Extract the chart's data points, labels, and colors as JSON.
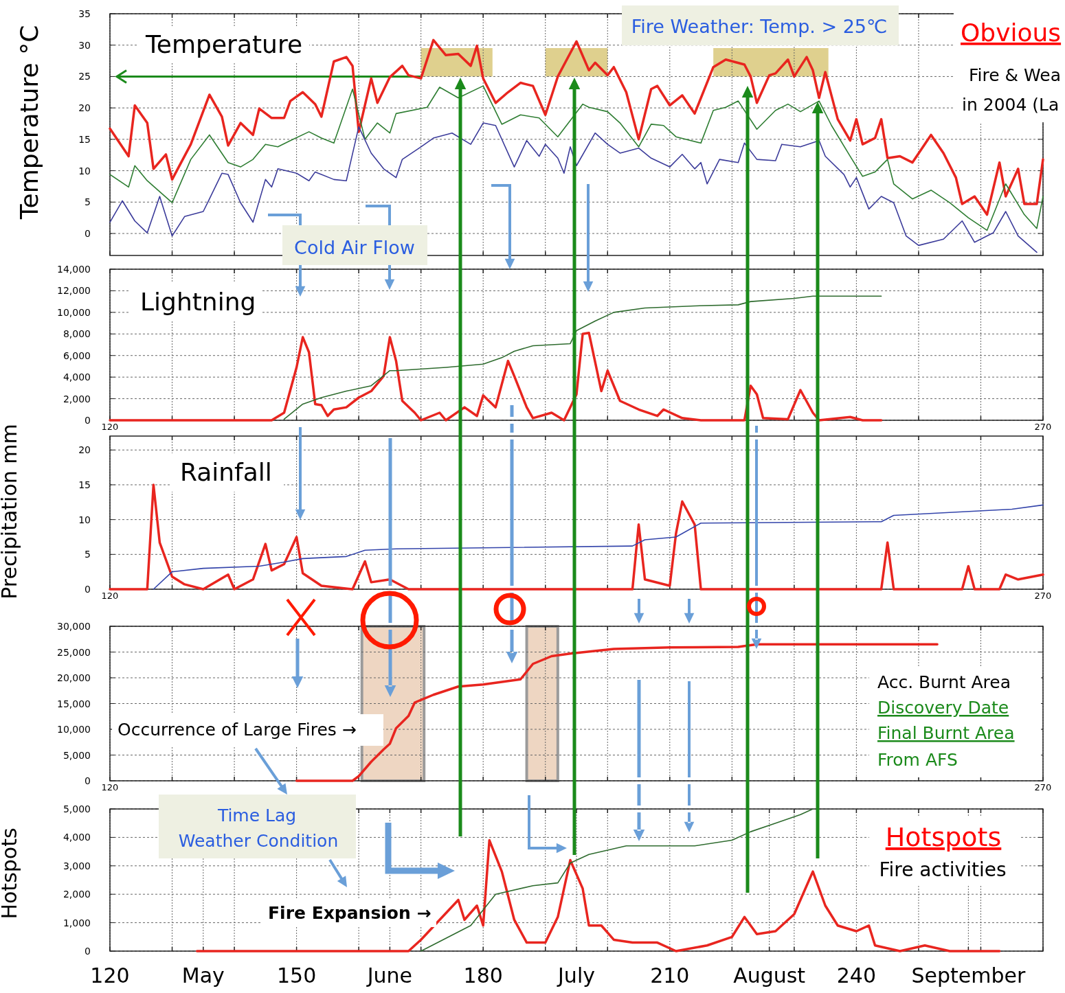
{
  "chart_data": [
    {
      "type": "line",
      "xlim": [
        120,
        270
      ],
      "ylim": [
        -3.5,
        35
      ],
      "ylabel": "Temperature °C",
      "grid": true,
      "tick_labels": "y",
      "xticks": [
        {
          "value": 120,
          "label": null
        },
        {
          "value": 130,
          "label": null
        },
        {
          "value": 140,
          "label": null
        },
        {
          "value": 150,
          "label": null
        },
        {
          "value": 160,
          "label": null
        },
        {
          "value": 170,
          "label": null
        },
        {
          "value": 180,
          "label": null
        },
        {
          "value": 190,
          "label": null
        },
        {
          "value": 200,
          "label": null
        },
        {
          "value": 210,
          "label": null
        },
        {
          "value": 220,
          "label": null
        },
        {
          "value": 230,
          "label": null
        },
        {
          "value": 240,
          "label": null
        },
        {
          "value": 250,
          "label": null
        },
        {
          "value": 260,
          "label": null
        },
        {
          "value": 270,
          "label": null
        }
      ],
      "yticks": [
        0,
        5,
        10,
        15,
        20,
        25,
        30,
        35
      ],
      "ref_lines": [
        {
          "axis": "y",
          "value": 25,
          "color": "#1b8a1b"
        }
      ],
      "bands": [
        {
          "axis": "x",
          "from": 170,
          "to": 181.5,
          "color": "#d9c87a"
        },
        {
          "axis": "x",
          "from": 190,
          "to": 200,
          "color": "#d9c87a"
        },
        {
          "axis": "x",
          "from": 217,
          "to": 235.5,
          "color": "#d9c87a"
        }
      ],
      "annotations": [
        "Temperature",
        "Fire Weather: Temp. > 25℃",
        "Cold Air Flow",
        "Obvious",
        "Fire & Wea",
        "in 2004 (La"
      ],
      "series": [
        {
          "color": "#e8251f",
          "x": [
            120,
            123,
            124,
            126,
            127,
            129,
            130,
            133,
            136,
            138,
            139,
            141,
            143,
            144,
            146,
            148,
            149,
            151,
            153,
            154,
            156,
            158,
            159,
            160,
            162,
            163,
            165,
            167,
            168,
            170,
            172,
            174,
            176,
            178,
            179,
            180,
            182,
            184,
            186,
            188,
            190,
            192,
            195,
            197,
            198,
            200,
            201,
            203,
            205,
            207,
            208,
            210,
            212,
            214,
            217,
            219,
            222,
            223,
            224,
            226,
            227,
            229,
            230,
            232,
            233,
            234,
            235,
            237,
            239,
            240,
            241,
            243,
            244,
            245,
            247,
            249,
            252,
            254,
            256,
            257,
            259,
            261,
            263,
            264,
            266,
            267,
            269,
            270
          ],
          "values": [
            16.7,
            12.3,
            20.4,
            17.6,
            10.3,
            12.6,
            8.6,
            14.2,
            22.1,
            18.6,
            14,
            17.6,
            15.7,
            19.9,
            18.4,
            18.4,
            21.1,
            22.5,
            20.6,
            18.6,
            27.4,
            28.1,
            26.7,
            16.2,
            24.7,
            20.8,
            24.9,
            26.7,
            25.2,
            24.7,
            30.8,
            28.4,
            28.6,
            26.7,
            29.9,
            24.7,
            20.8,
            22.5,
            24,
            23.5,
            18.9,
            25,
            30.6,
            26,
            27.2,
            25.2,
            26.5,
            22.5,
            15,
            23,
            23.5,
            20.4,
            22,
            19.1,
            26.5,
            27.7,
            26.9,
            25,
            20.8,
            25.2,
            25.5,
            27.7,
            25,
            28.1,
            26,
            21.6,
            25.7,
            18.2,
            14.8,
            18.2,
            14.2,
            15.2,
            18.2,
            12,
            12.3,
            11.3,
            15.7,
            12.8,
            8.9,
            4.7,
            5.9,
            3,
            11.3,
            5.9,
            10.3,
            4.7,
            4.7,
            11.8
          ]
        },
        {
          "color": "#2e7d32",
          "x": [
            120,
            123,
            124,
            126,
            130,
            133,
            136,
            139,
            141,
            143,
            145,
            147,
            149,
            152,
            154,
            156,
            159,
            161,
            163,
            165,
            166,
            171,
            173,
            176,
            180,
            183,
            186,
            189,
            192,
            196,
            197,
            200,
            202,
            205,
            207,
            209,
            211,
            215,
            217,
            219,
            221,
            224,
            227,
            229,
            231,
            234,
            236,
            239,
            241,
            243,
            245,
            246,
            249,
            252,
            255,
            258,
            261,
            264,
            267,
            269,
            270
          ],
          "values": [
            9.4,
            7.4,
            10.8,
            8.4,
            4.9,
            11.8,
            15.7,
            11.3,
            10.6,
            11.8,
            14.2,
            13.8,
            14.8,
            16.2,
            15.2,
            14.4,
            23,
            15,
            17.6,
            16,
            19.1,
            20.1,
            23.3,
            21.6,
            23.5,
            17.4,
            18.9,
            18.4,
            15.4,
            20.6,
            20.1,
            19.4,
            17.6,
            13.8,
            17.4,
            17.2,
            15.4,
            14.4,
            19.6,
            20.1,
            21.1,
            16.6,
            19.6,
            20.6,
            19.4,
            21.1,
            17.2,
            12.3,
            9.1,
            9.8,
            11.8,
            7.9,
            5.5,
            6.9,
            4.9,
            2.5,
            0.5,
            7.9,
            3,
            0.8,
            5.9
          ]
        },
        {
          "color": "#3b3b9a",
          "x": [
            120,
            122,
            124,
            126,
            128,
            130,
            132,
            135,
            136,
            138,
            139,
            141,
            143,
            145,
            146,
            147,
            150,
            152,
            153,
            156,
            158,
            160,
            162,
            164,
            166,
            167,
            170,
            172,
            175,
            178,
            180,
            182,
            185,
            187,
            189,
            190,
            192,
            193,
            194,
            195,
            198,
            200,
            202,
            205,
            207,
            210,
            212,
            214,
            215,
            216,
            218,
            221,
            222,
            224,
            227,
            228,
            231,
            234,
            235,
            238,
            239,
            240,
            242,
            244,
            246,
            248,
            250,
            254,
            257,
            259,
            262,
            264,
            266,
            269
          ],
          "values": [
            1.8,
            5.2,
            2,
            0.1,
            5.9,
            -0.4,
            2.7,
            3.5,
            5.5,
            9.6,
            9.4,
            4.9,
            1.8,
            8.6,
            7.4,
            10.3,
            9.6,
            8.4,
            9.8,
            8.6,
            8.4,
            17,
            12.8,
            10.3,
            8.9,
            11.8,
            13.8,
            15.2,
            16,
            14.2,
            17.6,
            17.2,
            10.6,
            14.8,
            12.3,
            14.2,
            12,
            9.6,
            13.8,
            10.8,
            16,
            14.2,
            12.8,
            13.6,
            12,
            10.6,
            12.6,
            10.3,
            11.3,
            7.9,
            11.8,
            11.3,
            14.4,
            11.8,
            11.6,
            14.2,
            13.8,
            14.8,
            12.3,
            9.4,
            7.4,
            8.9,
            3.9,
            5.9,
            4.9,
            -0.4,
            -1.9,
            -0.9,
            2,
            -1.4,
            0.1,
            3.5,
            -0.4,
            -3
          ]
        }
      ]
    },
    {
      "type": "line",
      "xlim": [
        120,
        270
      ],
      "ylim": [
        0,
        14000
      ],
      "grid": true,
      "xticks": [
        120,
        {
          "value": 130,
          "label": null
        },
        {
          "value": 140,
          "label": null
        },
        {
          "value": 150,
          "label": null
        },
        {
          "value": 160,
          "label": null
        },
        {
          "value": 170,
          "label": null
        },
        {
          "value": 180,
          "label": null
        },
        {
          "value": 190,
          "label": null
        },
        {
          "value": 200,
          "label": null
        },
        {
          "value": 210,
          "label": null
        },
        {
          "value": 220,
          "label": null
        },
        {
          "value": 230,
          "label": null
        },
        {
          "value": 240,
          "label": null
        },
        {
          "value": 250,
          "label": null
        },
        {
          "value": 260,
          "label": null
        },
        270
      ],
      "yticks": [
        0,
        {
          "value": 2000,
          "label": "2,000"
        },
        {
          "value": 4000,
          "label": "4,000"
        },
        {
          "value": 6000,
          "label": "6,000"
        },
        {
          "value": 8000,
          "label": "8,000"
        },
        {
          "value": 10000,
          "label": "10,000"
        },
        {
          "value": 12000,
          "label": "12,000"
        },
        {
          "value": 14000,
          "label": "14,000"
        }
      ],
      "annotations": [
        "Lightning"
      ],
      "series": [
        {
          "color": "#e8251f",
          "x": [
            120,
            146,
            148,
            150,
            151,
            152,
            153,
            154,
            155,
            156,
            158,
            160,
            162,
            164,
            165,
            166,
            167,
            169,
            170,
            173,
            174,
            177,
            179,
            180,
            182,
            184,
            185,
            187,
            188,
            191,
            193,
            195,
            196,
            197,
            199,
            200,
            202,
            205,
            208,
            209,
            212,
            215,
            222,
            223,
            224,
            225,
            229,
            231,
            233,
            234,
            239,
            241,
            244
          ],
          "values": [
            0,
            0,
            700,
            4900,
            7700,
            6300,
            1500,
            1400,
            400,
            1000,
            1200,
            2100,
            2700,
            4100,
            7700,
            5500,
            1800,
            700,
            0,
            700,
            0,
            1200,
            400,
            2300,
            1200,
            5500,
            4100,
            1200,
            200,
            700,
            0,
            2400,
            8000,
            8100,
            2700,
            4600,
            1800,
            1000,
            400,
            1000,
            200,
            0,
            0,
            3200,
            2400,
            200,
            100,
            2800,
            700,
            0,
            300,
            0,
            0
          ]
        },
        {
          "color": "#2e6b2e",
          "x": [
            148,
            151,
            154,
            158,
            162,
            165,
            166,
            174,
            180,
            183,
            185,
            188,
            194,
            195,
            198,
            201,
            206,
            214,
            221,
            223,
            230,
            233,
            244
          ],
          "values": [
            100,
            1500,
            2100,
            2700,
            3200,
            4600,
            4600,
            4900,
            5200,
            5800,
            6400,
            6900,
            7100,
            8300,
            9200,
            10000,
            10400,
            10600,
            10700,
            11000,
            11300,
            11500,
            11500
          ]
        }
      ]
    },
    {
      "type": "line",
      "xlim": [
        120,
        270
      ],
      "ylim": [
        0,
        22
      ],
      "ylabel": "Precipitation  mm",
      "grid": true,
      "xticks": [
        120,
        {
          "value": 130,
          "label": null
        },
        {
          "value": 140,
          "label": null
        },
        {
          "value": 150,
          "label": null
        },
        {
          "value": 160,
          "label": null
        },
        {
          "value": 170,
          "label": null
        },
        {
          "value": 180,
          "label": null
        },
        {
          "value": 190,
          "label": null
        },
        {
          "value": 200,
          "label": null
        },
        {
          "value": 210,
          "label": null
        },
        {
          "value": 220,
          "label": null
        },
        {
          "value": 230,
          "label": null
        },
        {
          "value": 240,
          "label": null
        },
        {
          "value": 250,
          "label": null
        },
        {
          "value": 260,
          "label": null
        },
        270
      ],
      "yticks": [
        0,
        5,
        10,
        15,
        20
      ],
      "annotations": [
        "Rainfall"
      ],
      "series": [
        {
          "color": "#e8251f",
          "x": [
            120,
            126,
            127,
            128,
            130,
            132,
            135,
            139,
            140,
            143,
            145,
            146,
            148,
            150,
            151,
            154,
            159,
            161,
            162,
            165,
            168,
            204,
            205,
            206,
            210,
            211,
            212,
            214,
            215,
            244,
            245,
            246,
            257,
            258,
            259,
            263,
            264,
            266,
            270
          ],
          "values": [
            0,
            0,
            15,
            6.7,
            1.8,
            0.7,
            0,
            2.1,
            0,
            1.4,
            6.5,
            2.7,
            3.6,
            7.5,
            2.3,
            0.5,
            0,
            4,
            1,
            1.4,
            0,
            0,
            9.3,
            1.4,
            0.5,
            8,
            12.6,
            9.3,
            0,
            0,
            6.7,
            0,
            0,
            3.3,
            0,
            0,
            2.1,
            1.4,
            2.1
          ]
        },
        {
          "color": "#3344aa",
          "x": [
            127,
            130,
            135,
            144,
            148,
            151,
            158,
            161,
            166,
            204,
            206,
            211,
            215,
            244,
            246,
            265,
            270
          ],
          "values": [
            0,
            2.5,
            3,
            3.3,
            3.9,
            4.4,
            4.7,
            5.6,
            5.8,
            6.2,
            7.1,
            7.5,
            9.5,
            9.7,
            10.6,
            11.5,
            12.1
          ]
        }
      ]
    },
    {
      "type": "line",
      "xlim": [
        120,
        270
      ],
      "ylim": [
        0,
        30000
      ],
      "grid": true,
      "xticks": [
        120,
        {
          "value": 130,
          "label": null
        },
        {
          "value": 140,
          "label": null
        },
        {
          "value": 150,
          "label": null
        },
        {
          "value": 160,
          "label": null
        },
        {
          "value": 170,
          "label": null
        },
        {
          "value": 180,
          "label": null
        },
        {
          "value": 190,
          "label": null
        },
        {
          "value": 200,
          "label": null
        },
        {
          "value": 210,
          "label": null
        },
        {
          "value": 220,
          "label": null
        },
        {
          "value": 230,
          "label": null
        },
        {
          "value": 240,
          "label": null
        },
        {
          "value": 250,
          "label": null
        },
        {
          "value": 260,
          "label": null
        },
        270
      ],
      "yticks": [
        0,
        {
          "value": 5000,
          "label": "5,000"
        },
        {
          "value": 10000,
          "label": "10,000"
        },
        {
          "value": 15000,
          "label": "15,000"
        },
        {
          "value": 20000,
          "label": "20,000"
        },
        {
          "value": 25000,
          "label": "25,000"
        },
        {
          "value": 30000,
          "label": "30,000"
        }
      ],
      "bands": [
        {
          "axis": "x",
          "from": 160.5,
          "to": 170.5,
          "color": "#eccfb8"
        },
        {
          "axis": "x",
          "from": 187,
          "to": 192,
          "color": "#eccfb8"
        }
      ],
      "annotations": [
        "Acc. Burnt Area",
        "Discovery Date",
        "Final Burnt Area",
        "From AFS",
        "Occurrence of Large Fires →"
      ],
      "series": [
        {
          "color": "#e8251f",
          "x": [
            150,
            159,
            160,
            162,
            164,
            165,
            166,
            168,
            169,
            172,
            176,
            180,
            186,
            188,
            191,
            194,
            201,
            210,
            221,
            224,
            234,
            253
          ],
          "values": [
            0,
            0,
            900,
            3700,
            6100,
            7200,
            10200,
            12600,
            15200,
            16700,
            18300,
            18700,
            19700,
            22700,
            24200,
            24700,
            25600,
            25900,
            26000,
            26500,
            26500,
            26500
          ]
        }
      ]
    },
    {
      "type": "line",
      "xlim": [
        120,
        270
      ],
      "ylim": [
        0,
        5000
      ],
      "ylabel": "Hotspots",
      "grid": true,
      "xticks": [
        120,
        {
          "value": 130,
          "label": null
        },
        {
          "value": 135,
          "label": "May"
        },
        {
          "value": 140,
          "label": null
        },
        150,
        {
          "value": 160,
          "label": null
        },
        {
          "value": 165,
          "label": "June"
        },
        {
          "value": 170,
          "label": null
        },
        180,
        {
          "value": 190,
          "label": null
        },
        {
          "value": 195,
          "label": "July"
        },
        {
          "value": 200,
          "label": null
        },
        210,
        {
          "value": 220,
          "label": null
        },
        {
          "value": 226,
          "label": "August"
        },
        {
          "value": 230,
          "label": null
        },
        240,
        {
          "value": 250,
          "label": null
        },
        {
          "value": 258,
          "label": "September"
        },
        {
          "value": 260,
          "label": null
        },
        {
          "value": 270,
          "label": null
        }
      ],
      "yticks": [
        0,
        {
          "value": 1000,
          "label": "1,000"
        },
        {
          "value": 2000,
          "label": "2,000"
        },
        {
          "value": 3000,
          "label": "3,000"
        },
        {
          "value": 4000,
          "label": "4,000"
        },
        {
          "value": 5000,
          "label": "5,000"
        }
      ],
      "annotations": [
        "Time Lag",
        "Weather Condition",
        "Fire Expansion →",
        "Hotspots",
        "Fire activities"
      ],
      "series": [
        {
          "color": "#e8251f",
          "x": [
            134,
            168,
            170,
            173,
            176,
            177,
            179,
            180,
            181,
            183,
            185,
            187,
            190,
            192,
            194,
            196,
            197,
            199,
            201,
            204,
            208,
            211,
            216,
            220,
            222,
            224,
            227,
            230,
            233,
            235,
            237,
            240,
            242,
            243,
            247,
            251,
            255,
            263
          ],
          "values": [
            0,
            0,
            400,
            1100,
            1800,
            1100,
            1600,
            900,
            3900,
            2800,
            1100,
            300,
            300,
            1200,
            3200,
            2200,
            900,
            900,
            400,
            300,
            300,
            0,
            200,
            500,
            1200,
            600,
            700,
            1300,
            2800,
            1600,
            900,
            700,
            900,
            200,
            0,
            200,
            0,
            0
          ]
        },
        {
          "color": "#2e6b2e",
          "x": [
            170,
            178,
            182,
            188,
            192,
            194,
            197,
            203,
            214,
            220,
            223,
            227,
            231,
            233
          ],
          "values": [
            0,
            900,
            2000,
            2300,
            2400,
            3100,
            3400,
            3700,
            3700,
            3900,
            4200,
            4500,
            4800,
            5000
          ]
        }
      ]
    }
  ]
}
